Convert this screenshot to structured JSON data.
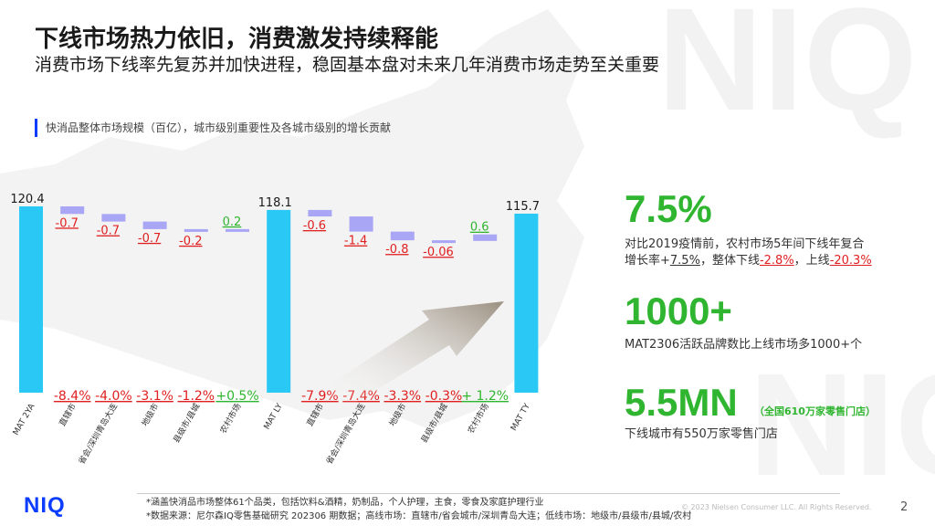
{
  "title": "下线市场热力依旧，消费激发持续释能",
  "subtitle": "消费市场下线率先复苏并加快进程，稳固基本盘对未来几年消费市场走势至关重要",
  "chart_label": "快消品整体市场规模（百亿），城市级别重要性及各城市级别的增长贡献",
  "chart_data": {
    "type": "bar",
    "subtype": "waterfall",
    "categories": [
      "MAT 2YA",
      "直辖市",
      "省会/深圳青岛大连",
      "地级市",
      "县级市/县城",
      "农村市场",
      "MAT LY",
      "直辖市",
      "省会/深圳青岛大连",
      "地级市",
      "县级市/县城",
      "农村市场",
      "MAT TY"
    ],
    "values": [
      120.4,
      -0.7,
      -0.7,
      -0.7,
      -0.2,
      0.2,
      118.1,
      -0.6,
      -1.4,
      -0.8,
      -0.06,
      0.6,
      115.7
    ],
    "value_labels": [
      "120.4",
      "-0.7",
      "-0.7",
      "-0.7",
      "-0.2",
      "0.2",
      "118.1",
      "-0.6",
      "-1.4",
      "-0.8",
      "-0.06",
      "0.6",
      "115.7"
    ],
    "growth_labels": [
      "",
      "-8.4%",
      "-4.0%",
      "-3.1%",
      "-1.2%",
      "+0.5%",
      "",
      "-7.9%",
      "-7.4%",
      "-3.3%",
      "-0.3%",
      "+ 1.2%",
      ""
    ],
    "colors": {
      "total": "#29c8f5",
      "change": "#a9a6f5",
      "negative_label": "#e02020",
      "positive_label": "#2fb52f"
    }
  },
  "stats": [
    {
      "value": "7.5%"
    },
    {
      "value": "1000+"
    },
    {
      "value": "5.5MN",
      "note": "（全国610万家零售门店）"
    }
  ],
  "desc": {
    "s1_line1": "对比2019疫情前，农村市场5年间下线年复合",
    "s1_l2_a": "增长率+",
    "s1_l2_b": "7.5%",
    "s1_l2_c": "，整体下线",
    "s1_l2_d": "-2.8%",
    "s1_l2_e": "，上线",
    "s1_l2_f": "-20.3%",
    "s2": "MAT2306活跃品牌数比上线市场多1000+个",
    "s3": "下线城市有550万家零售门店"
  },
  "footer": {
    "note1": "*涵盖快消品市场整体61个品类，包括饮料&酒精，奶制品，个人护理，主食，零食及家庭护理行业",
    "note2": "*数据来源：尼尔森IQ零售基础研究 202306 期数据；高线市场：直辖市/省会城市/深圳青岛大连；低线市场：地级市/县级市/县城/农村",
    "copyright": "© 2023 Nielsen Consumer LLC. All Rights Reserved.",
    "page": "2",
    "logo": "NIQ"
  }
}
